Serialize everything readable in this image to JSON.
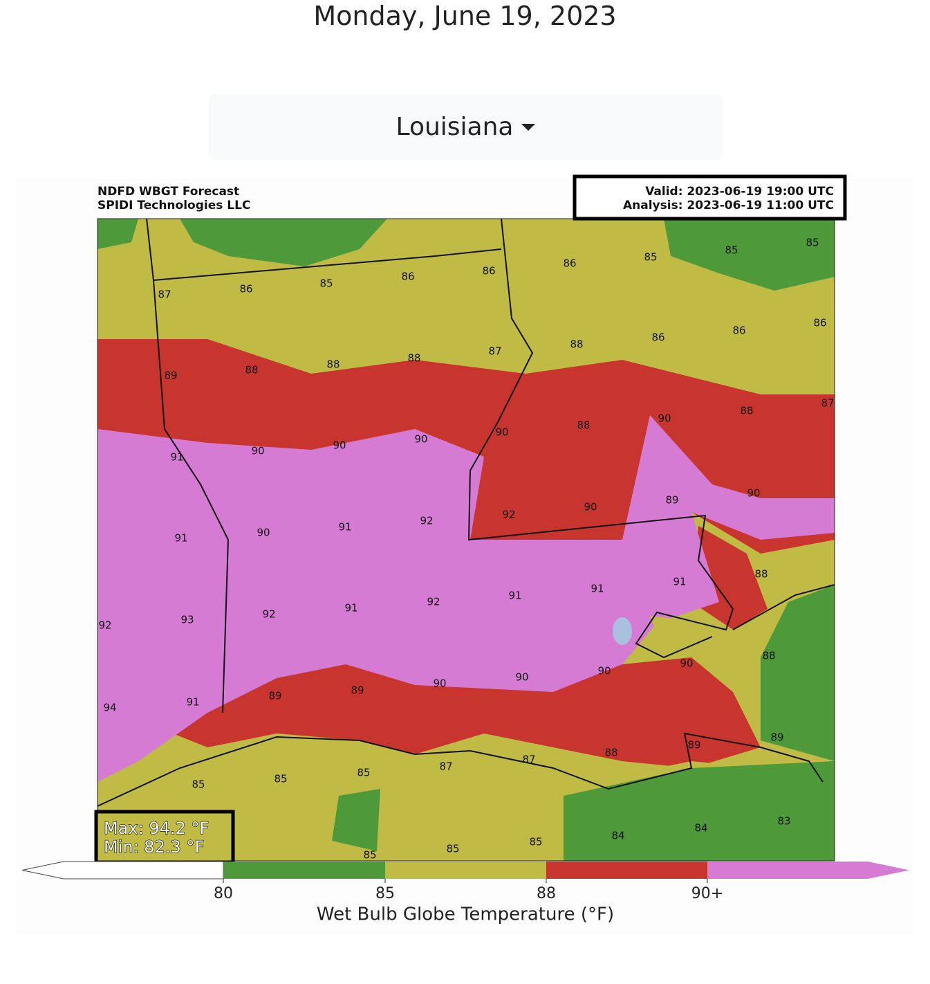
{
  "header": {
    "date": "Monday, June 19, 2023"
  },
  "dropdown": {
    "selected": "Louisiana"
  },
  "map": {
    "title": "NDFD WBGT Forecast",
    "credit": "SPIDI Technologies LLC",
    "valid": "Valid: 2023-06-19 19:00 UTC",
    "analysis": "Analysis: 2023-06-19 11:00 UTC",
    "max": "Max: 94.2 °F",
    "min": "Min: 82.3 °F",
    "labels": [
      87,
      86,
      85,
      86,
      86,
      86,
      85,
      85,
      85,
      89,
      88,
      88,
      88,
      87,
      88,
      86,
      86,
      86,
      91,
      90,
      90,
      90,
      90,
      88,
      90,
      88,
      87,
      91,
      90,
      91,
      92,
      92,
      90,
      89,
      90,
      92,
      93,
      92,
      91,
      92,
      91,
      91,
      91,
      88,
      94,
      91,
      89,
      89,
      90,
      90,
      90,
      90,
      88,
      85,
      85,
      85,
      87,
      87,
      88,
      89,
      89,
      85,
      85,
      85,
      84,
      84,
      83
    ]
  },
  "colorbar": {
    "ticks": [
      80,
      85,
      88,
      "90+"
    ],
    "label": "Wet Bulb Globe Temperature (°F)",
    "colors": [
      "#ffffff",
      "#4e9a3a",
      "#bfbb45",
      "#c8352e",
      "#d67bd4"
    ]
  }
}
